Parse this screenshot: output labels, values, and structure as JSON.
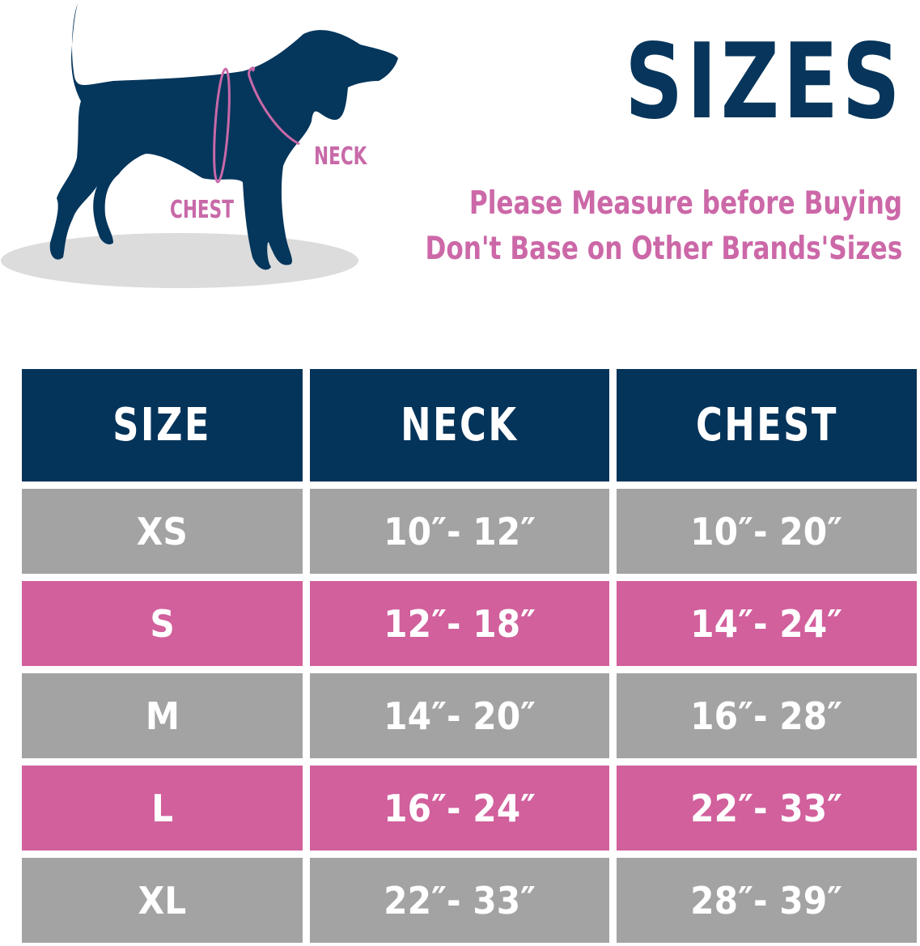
{
  "illustration": {
    "neck_label": "NECK",
    "chest_label": "CHEST"
  },
  "title": "SIZES",
  "notes": [
    "Please Measure before Buying",
    "Don't Base on Other Brands'Sizes"
  ],
  "colors": {
    "navy": "#05345a",
    "gray": "#a3a3a3",
    "pink": "#d1609c",
    "text_pink": "#cc68a8"
  },
  "table": {
    "headers": [
      "SIZE",
      "NECK",
      "CHEST"
    ],
    "rows": [
      {
        "size": "XS",
        "neck": "10″- 12″",
        "chest": "10″- 20″",
        "color": "gray"
      },
      {
        "size": "S",
        "neck": "12″- 18″",
        "chest": "14″- 24″",
        "color": "pink"
      },
      {
        "size": "M",
        "neck": "14″- 20″",
        "chest": "16″- 28″",
        "color": "gray"
      },
      {
        "size": "L",
        "neck": "16″- 24″",
        "chest": "22″- 33″",
        "color": "pink"
      },
      {
        "size": "XL",
        "neck": "22″- 33″",
        "chest": "28″- 39″",
        "color": "gray"
      }
    ]
  }
}
